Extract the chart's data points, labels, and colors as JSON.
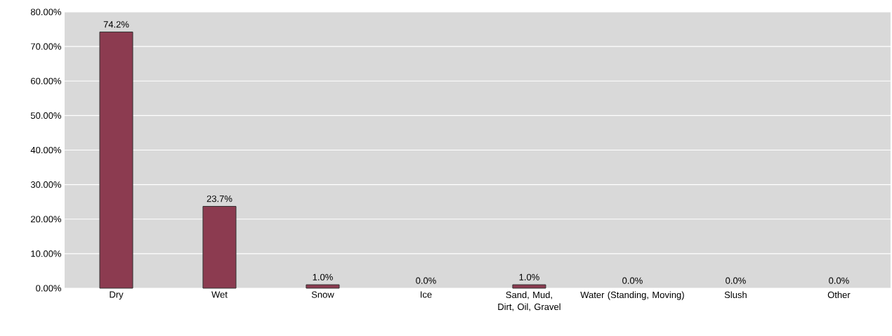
{
  "chart_data": {
    "type": "bar",
    "categories": [
      "Dry",
      "Wet",
      "Snow",
      "Ice",
      "Sand, Mud, Dirt, Oil, Gravel",
      "Water (Standing, Moving)",
      "Slush",
      "Other"
    ],
    "values": [
      74.2,
      23.7,
      1.0,
      0.0,
      1.0,
      0.0,
      0.0,
      0.0
    ],
    "value_labels": [
      "74.2%",
      "23.7%",
      "1.0%",
      "0.0%",
      "1.0%",
      "0.0%",
      "0.0%",
      "0.0%"
    ],
    "color": "#8c3b50",
    "ylim": [
      0,
      80
    ],
    "yticks": [
      {
        "value": 0,
        "label": "0.00%"
      },
      {
        "value": 10,
        "label": "10.00%"
      },
      {
        "value": 20,
        "label": "20.00%"
      },
      {
        "value": 30,
        "label": "30.00%"
      },
      {
        "value": 40,
        "label": "40.00%"
      },
      {
        "value": 50,
        "label": "50.00%"
      },
      {
        "value": 60,
        "label": "60.00%"
      },
      {
        "value": 70,
        "label": "70.00%"
      },
      {
        "value": 80,
        "label": "80.00%"
      }
    ],
    "grid": "y"
  }
}
